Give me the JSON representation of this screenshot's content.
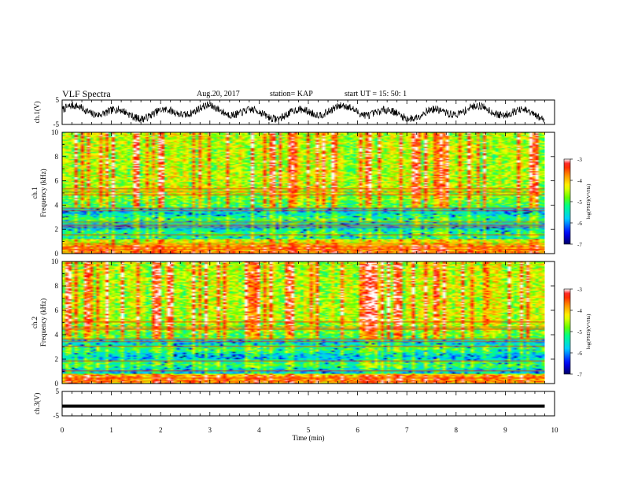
{
  "header": {
    "title": "VLF Spectra",
    "date": "Aug.20, 2017",
    "station": "station= KAP",
    "start": "start  UT  =   15: 50: 1"
  },
  "chart_data": [
    {
      "type": "line",
      "panel": "ch1-waveform",
      "ylabel": "ch.1(V)",
      "ylim": [
        -5,
        5
      ],
      "yticks": [
        "5",
        "-5"
      ],
      "xlim": [
        0,
        10
      ],
      "series": [
        {
          "description": "noisy voltage waveform oscillating roughly between -3 and 3 V over 0–9.8 min"
        }
      ]
    },
    {
      "type": "heatmap",
      "panel": "ch1-spectrogram",
      "ylabel": "ch.1 Frequency (kHz)",
      "ylim": [
        0,
        10
      ],
      "yticks": [
        "0",
        "2",
        "4",
        "6",
        "8",
        "10"
      ],
      "xlim": [
        0,
        10
      ],
      "data_end_min": 9.8,
      "colorbar": {
        "label": "log(PSD)(V²/Hz)",
        "range": [
          -7,
          -3
        ],
        "ticks": [
          "-3",
          "-4",
          "-5",
          "-6",
          "-7"
        ]
      },
      "lines_khz": [
        0.1,
        0.35,
        0.55,
        0.8,
        1.55,
        2.2,
        2.35,
        2.6,
        3.55,
        3.75,
        4.85,
        5.1,
        5.35
      ]
    },
    {
      "type": "heatmap",
      "panel": "ch2-spectrogram",
      "ylabel": "ch.2 Frequency (kHz)",
      "ylim": [
        0,
        10
      ],
      "yticks": [
        "0",
        "2",
        "4",
        "6",
        "8",
        "10"
      ],
      "xlim": [
        0,
        10
      ],
      "data_end_min": 9.8,
      "colorbar": {
        "label": "log(PSD)(V²/Hz)",
        "range": [
          -7,
          -3
        ],
        "ticks": [
          "-3",
          "-4",
          "-5",
          "-6",
          "-7"
        ]
      },
      "lines_khz": [
        0.2,
        0.45,
        1.05,
        1.85,
        3.05,
        3.45,
        3.65,
        4.45,
        4.6,
        5.05
      ]
    },
    {
      "type": "line",
      "panel": "ch3-waveform",
      "ylabel": "ch.3(V)",
      "ylim": [
        -5,
        5
      ],
      "yticks": [
        "5",
        "-5"
      ],
      "xlim": [
        0,
        10
      ],
      "series": [
        {
          "description": "flat line near -1 V",
          "values": [
            -1,
            -1
          ]
        }
      ]
    }
  ],
  "xaxis": {
    "label": "Time  (min)",
    "ticks": [
      "0",
      "1",
      "2",
      "3",
      "4",
      "5",
      "6",
      "7",
      "8",
      "9",
      "10"
    ]
  },
  "colors": {
    "colormap": [
      "#000066",
      "#0000ff",
      "#00ccff",
      "#00ff88",
      "#66ff00",
      "#ffff00",
      "#ff8800",
      "#ff0000",
      "#ffffff"
    ]
  }
}
